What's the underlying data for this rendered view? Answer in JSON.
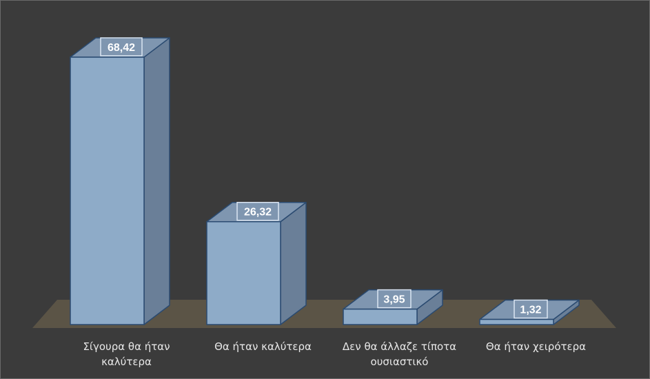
{
  "chart_data": {
    "type": "bar",
    "style": "3d-column",
    "categories": [
      [
        "Σίγουρα θα ήταν",
        "καλύτερα"
      ],
      [
        "Θα ήταν καλύτερα"
      ],
      [
        "Δεν θα άλλαζε τίποτα",
        "ουσιαστικό"
      ],
      [
        "Θα ήταν χειρότερα"
      ]
    ],
    "values": [
      68.42,
      26.32,
      3.95,
      1.32
    ],
    "value_labels": [
      "68,42",
      "26,32",
      "3,95",
      "1,32"
    ],
    "ylim": [
      0,
      70
    ],
    "grid": false,
    "legend": "none",
    "title": "",
    "xlabel": "",
    "ylabel": ""
  },
  "colors": {
    "background": "#3b3b3b",
    "floor": "#5b5446",
    "bar_front": "#8eabc8",
    "bar_top": "#7f96b0",
    "bar_side": "#6a7f98",
    "bar_stroke": "#2a4a70",
    "label_box_border": "#dce6f2",
    "label_text": "#ffffff",
    "category_text": "#e8e8e8"
  }
}
